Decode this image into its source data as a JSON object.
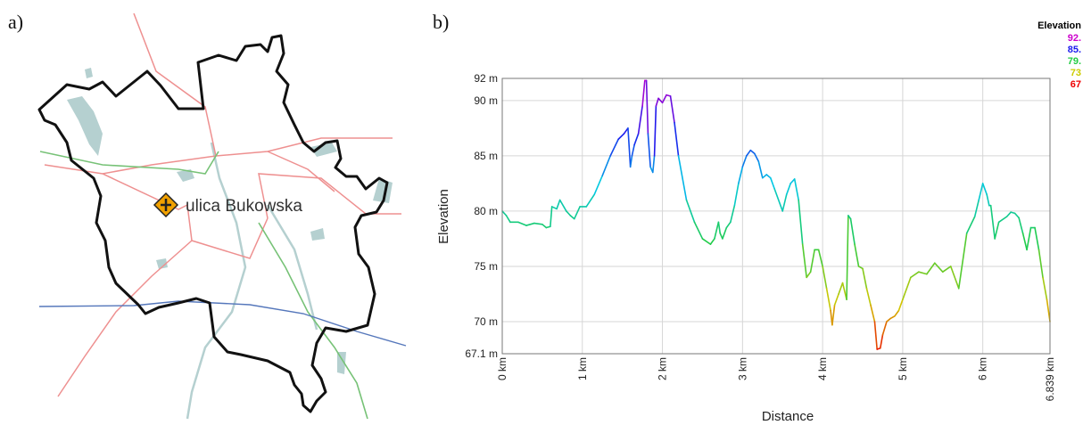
{
  "panels": {
    "a_label": "a)",
    "b_label": "b)"
  },
  "map": {
    "place_label": "ulica Bukowska",
    "colors": {
      "boundary": "#111111",
      "roads": "#ee8888",
      "green_route": "#77c277",
      "river": "#5577bb",
      "water": "#b5d0d0"
    },
    "marker_icon": "road-sign-crossroads-icon"
  },
  "chart_data": {
    "type": "line",
    "xlabel": "Distance",
    "ylabel": "Elevation",
    "xlim": [
      0,
      6.839
    ],
    "ylim": [
      67.1,
      92
    ],
    "x_tick_labels": [
      "0 km",
      "1 km",
      "2 km",
      "3 km",
      "4 km",
      "5 km",
      "6 km",
      "6.839 km"
    ],
    "x_tick_values": [
      0,
      1,
      2,
      3,
      4,
      5,
      6,
      6.839
    ],
    "y_tick_labels": [
      "67.1 m",
      "70 m",
      "75 m",
      "80 m",
      "85 m",
      "90 m",
      "92 m"
    ],
    "y_tick_values": [
      67.1,
      70,
      75,
      80,
      85,
      90,
      92
    ],
    "grid": true,
    "legend": {
      "title": "Elevation",
      "position": "top-right",
      "entries": [
        {
          "label": "92.",
          "color": "#cc00cc"
        },
        {
          "label": "85.",
          "color": "#1a1aee"
        },
        {
          "label": "79.",
          "color": "#22cc44"
        },
        {
          "label": "73",
          "color": "#cccc00"
        },
        {
          "label": "67",
          "color": "#ee0000"
        }
      ]
    },
    "series": [
      {
        "x": [
          0,
          0.05,
          0.1,
          0.2,
          0.3,
          0.4,
          0.5,
          0.55,
          0.6,
          0.62,
          0.68,
          0.72,
          0.8,
          0.85,
          0.9,
          0.97,
          1.05,
          1.15,
          1.25,
          1.35,
          1.45,
          1.52,
          1.57,
          1.6,
          1.62,
          1.65,
          1.7,
          1.75,
          1.78,
          1.8,
          1.82,
          1.85,
          1.88,
          1.9,
          1.92,
          1.95,
          2.0,
          2.05,
          2.1,
          2.15,
          2.2,
          2.3,
          2.4,
          2.5,
          2.6,
          2.65,
          2.7,
          2.72,
          2.75,
          2.8,
          2.85,
          2.9,
          2.95,
          3.0,
          3.05,
          3.1,
          3.15,
          3.2,
          3.25,
          3.3,
          3.35,
          3.4,
          3.5,
          3.55,
          3.6,
          3.65,
          3.7,
          3.75,
          3.8,
          3.85,
          3.9,
          3.95,
          4.0,
          4.05,
          4.1,
          4.12,
          4.15,
          4.2,
          4.25,
          4.3,
          4.32,
          4.35,
          4.4,
          4.45,
          4.5,
          4.55,
          4.6,
          4.65,
          4.68,
          4.72,
          4.75,
          4.8,
          4.85,
          4.9,
          4.95,
          5.0,
          5.1,
          5.2,
          5.3,
          5.4,
          5.5,
          5.6,
          5.7,
          5.8,
          5.9,
          5.95,
          6.0,
          6.05,
          6.08,
          6.1,
          6.15,
          6.2,
          6.3,
          6.35,
          6.4,
          6.45,
          6.5,
          6.55,
          6.6,
          6.65,
          6.7,
          6.75,
          6.8,
          6.839
        ],
        "y": [
          80.0,
          79.6,
          79.0,
          79.0,
          78.7,
          78.9,
          78.8,
          78.5,
          78.6,
          80.4,
          80.2,
          81.0,
          80.0,
          79.6,
          79.3,
          80.4,
          80.4,
          81.5,
          83.2,
          85.0,
          86.5,
          87.0,
          87.5,
          84.0,
          85.0,
          86.0,
          87.0,
          89.5,
          91.8,
          91.8,
          87.0,
          84.0,
          83.5,
          85.0,
          89.5,
          90.2,
          89.8,
          90.5,
          90.4,
          88.0,
          85.0,
          81.0,
          79.0,
          77.5,
          77.0,
          77.5,
          79.0,
          78.0,
          77.5,
          78.5,
          79.0,
          80.5,
          82.5,
          84.0,
          85.0,
          85.5,
          85.2,
          84.5,
          83.0,
          83.3,
          83.0,
          82.0,
          80.0,
          81.5,
          82.5,
          82.9,
          81.0,
          77.0,
          74.0,
          74.5,
          76.5,
          76.5,
          75.0,
          73.0,
          71.0,
          69.7,
          71.5,
          72.5,
          73.5,
          72.0,
          79.6,
          79.3,
          77.0,
          75.0,
          74.8,
          73.0,
          71.5,
          70.0,
          67.5,
          67.6,
          68.8,
          70.0,
          70.3,
          70.5,
          71.0,
          72.0,
          74.0,
          74.5,
          74.3,
          75.3,
          74.5,
          75.0,
          73.0,
          78.0,
          79.5,
          81.0,
          82.5,
          81.5,
          80.5,
          80.5,
          77.5,
          79.0,
          79.5,
          79.9,
          79.8,
          79.4,
          78.0,
          76.5,
          78.5,
          78.5,
          76.5,
          74.0,
          72.0,
          70.0
        ]
      }
    ]
  }
}
